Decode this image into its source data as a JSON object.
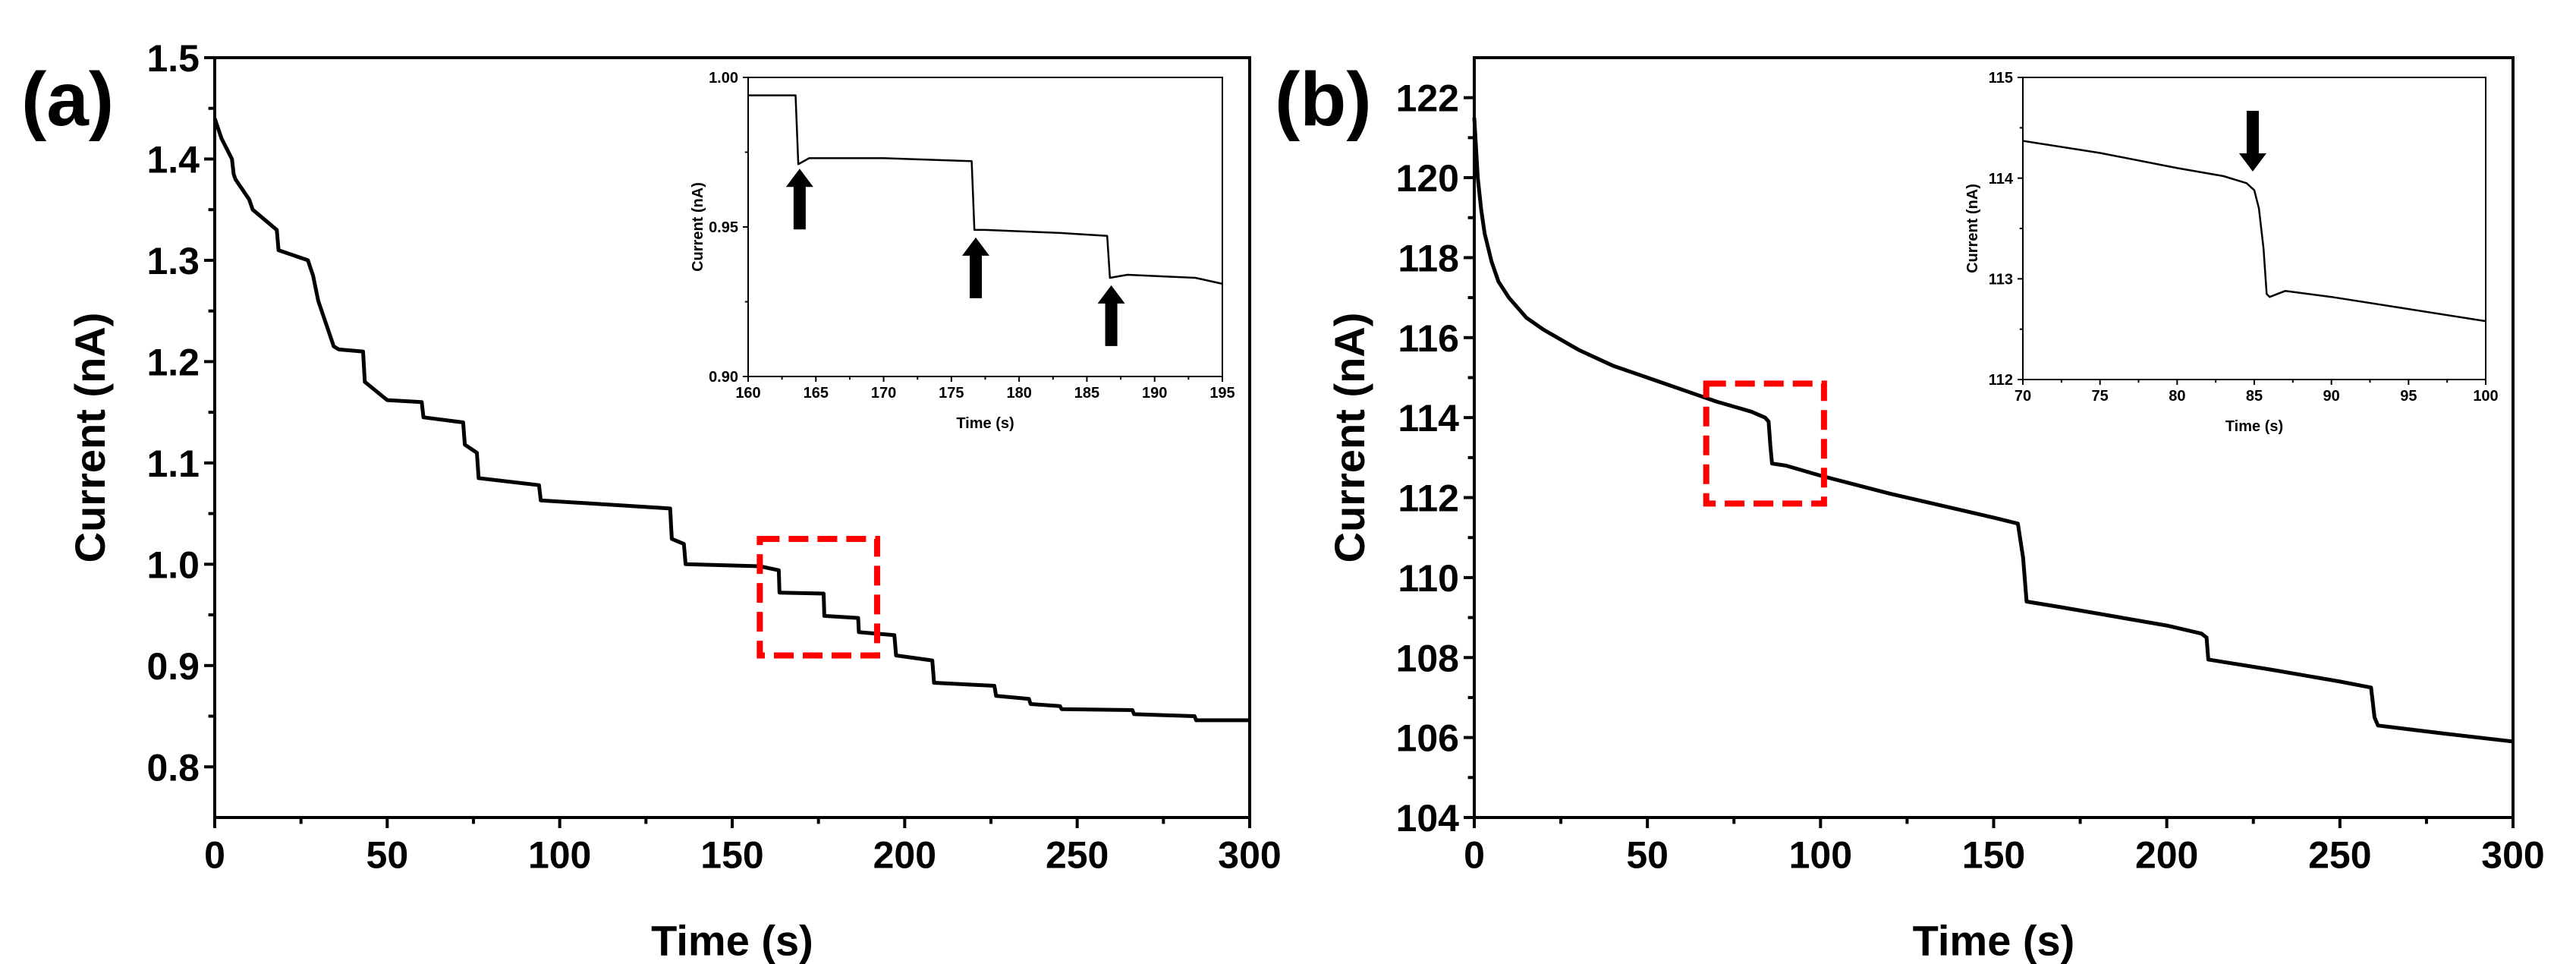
{
  "chart_data": [
    {
      "type": "line",
      "panel_label": "(a)",
      "xlabel": "Time (s)",
      "ylabel": "Current (nA)",
      "xlim": [
        0,
        300
      ],
      "ylim": [
        0.75,
        1.5
      ],
      "xticks": [
        0,
        50,
        100,
        150,
        200,
        250,
        300
      ],
      "yticks": [
        0.8,
        0.9,
        1.0,
        1.1,
        1.2,
        1.3,
        1.4,
        1.5
      ],
      "ytick_labels": [
        "0.8",
        "0.9",
        "1.0",
        "1.1",
        "1.2",
        "1.3",
        "1.4",
        "1.5"
      ],
      "grid": false,
      "line_color": "#000000",
      "highlight_box": {
        "color": "#ff0000",
        "x": [
          158,
          192
        ],
        "y": [
          0.91,
          1.025
        ]
      },
      "series": [
        {
          "x": [
            0,
            2,
            5,
            5.5,
            6,
            10,
            11,
            18,
            18.5,
            27,
            28,
            28.5,
            30,
            30.5,
            32,
            32.5,
            34,
            34.5,
            36,
            43,
            43.5,
            50,
            60,
            60.5,
            72,
            72.5,
            76,
            76.5,
            94,
            94.5,
            132,
            132.5,
            136,
            136.5,
            158,
            163.5,
            163.7,
            176.5,
            176.7,
            186.5,
            186.7,
            197,
            197.5,
            208,
            208.5,
            226,
            226.5,
            236,
            236.5,
            245,
            245.5,
            266,
            266.5,
            284,
            284.5,
            300
          ],
          "y": [
            1.44,
            1.42,
            1.4,
            1.385,
            1.38,
            1.36,
            1.35,
            1.33,
            1.31,
            1.3,
            1.29,
            1.285,
            1.26,
            1.255,
            1.24,
            1.235,
            1.22,
            1.215,
            1.212,
            1.21,
            1.18,
            1.162,
            1.16,
            1.145,
            1.14,
            1.118,
            1.11,
            1.085,
            1.078,
            1.063,
            1.055,
            1.025,
            1.02,
            1.0,
            0.998,
            0.994,
            0.972,
            0.971,
            0.949,
            0.947,
            0.933,
            0.93,
            0.91,
            0.905,
            0.883,
            0.88,
            0.87,
            0.867,
            0.862,
            0.86,
            0.857,
            0.856,
            0.852,
            0.85,
            0.846,
            0.846
          ]
        }
      ],
      "inset": {
        "xlabel": "Time (s)",
        "ylabel": "Current (nA)",
        "xlim": [
          160,
          195
        ],
        "ylim": [
          0.9,
          1.0
        ],
        "xticks": [
          160,
          165,
          170,
          175,
          180,
          185,
          190,
          195
        ],
        "yticks": [
          0.9,
          0.95,
          1.0
        ],
        "ytick_labels": [
          "0.90",
          "0.95",
          "1.00"
        ],
        "arrows": [
          {
            "x": 163.8,
            "y": 0.97,
            "direction": "up"
          },
          {
            "x": 176.8,
            "y": 0.947,
            "direction": "up"
          },
          {
            "x": 186.8,
            "y": 0.931,
            "direction": "up"
          }
        ],
        "series": [
          {
            "x": [
              160,
              163.5,
              163.7,
              164.5,
              170,
              176.5,
              176.7,
              177.5,
              183,
              186.5,
              186.7,
              188,
              193,
              195
            ],
            "y": [
              0.994,
              0.994,
              0.971,
              0.973,
              0.973,
              0.972,
              0.949,
              0.949,
              0.948,
              0.947,
              0.933,
              0.934,
              0.933,
              0.931
            ]
          }
        ]
      }
    },
    {
      "type": "line",
      "panel_label": "(b)",
      "xlabel": "Time (s)",
      "ylabel": "Current (nA)",
      "xlim": [
        0,
        300
      ],
      "ylim": [
        104,
        123
      ],
      "xticks": [
        0,
        50,
        100,
        150,
        200,
        250,
        300
      ],
      "yticks": [
        104,
        106,
        108,
        110,
        112,
        114,
        116,
        118,
        120,
        122
      ],
      "ytick_labels": [
        "104",
        "106",
        "108",
        "110",
        "112",
        "114",
        "116",
        "118",
        "120",
        "122"
      ],
      "grid": false,
      "line_color": "#000000",
      "highlight_box": {
        "color": "#ff0000",
        "x": [
          67,
          101
        ],
        "y": [
          111.85,
          114.85
        ]
      },
      "series": [
        {
          "x": [
            0,
            1,
            2,
            3,
            5,
            7,
            10,
            15,
            20,
            30,
            40,
            50,
            60,
            70,
            80,
            84,
            85,
            85.5,
            86,
            90,
            100,
            120,
            150,
            157,
            158.5,
            159.5,
            170,
            200,
            210,
            211.5,
            212,
            230,
            250,
            259,
            260,
            261,
            280,
            300
          ],
          "y": [
            121.5,
            120.0,
            119.2,
            118.6,
            117.9,
            117.4,
            117.0,
            116.5,
            116.2,
            115.7,
            115.3,
            115.0,
            114.7,
            114.4,
            114.15,
            114.0,
            113.9,
            113.3,
            112.85,
            112.8,
            112.55,
            112.1,
            111.5,
            111.35,
            110.5,
            109.4,
            109.25,
            108.8,
            108.6,
            108.5,
            107.95,
            107.7,
            107.4,
            107.25,
            106.5,
            106.3,
            106.1,
            105.9
          ]
        }
      ],
      "inset": {
        "xlabel": "Time (s)",
        "ylabel": "Current (nA)",
        "xlim": [
          70,
          100
        ],
        "ylim": [
          112,
          115
        ],
        "xticks": [
          70,
          75,
          80,
          85,
          90,
          95,
          100
        ],
        "yticks": [
          112,
          113,
          114,
          115
        ],
        "ytick_labels": [
          "112",
          "113",
          "114",
          "115"
        ],
        "arrows": [
          {
            "x": 84.9,
            "y": 114.05,
            "direction": "down"
          }
        ],
        "series": [
          {
            "x": [
              70,
              75,
              80,
              83,
              84.5,
              85,
              85.3,
              85.6,
              85.8,
              86,
              87,
              90,
              95,
              100
            ],
            "y": [
              114.37,
              114.25,
              114.1,
              114.02,
              113.95,
              113.88,
              113.7,
              113.3,
              112.85,
              112.82,
              112.88,
              112.82,
              112.7,
              112.58
            ]
          }
        ]
      }
    }
  ]
}
